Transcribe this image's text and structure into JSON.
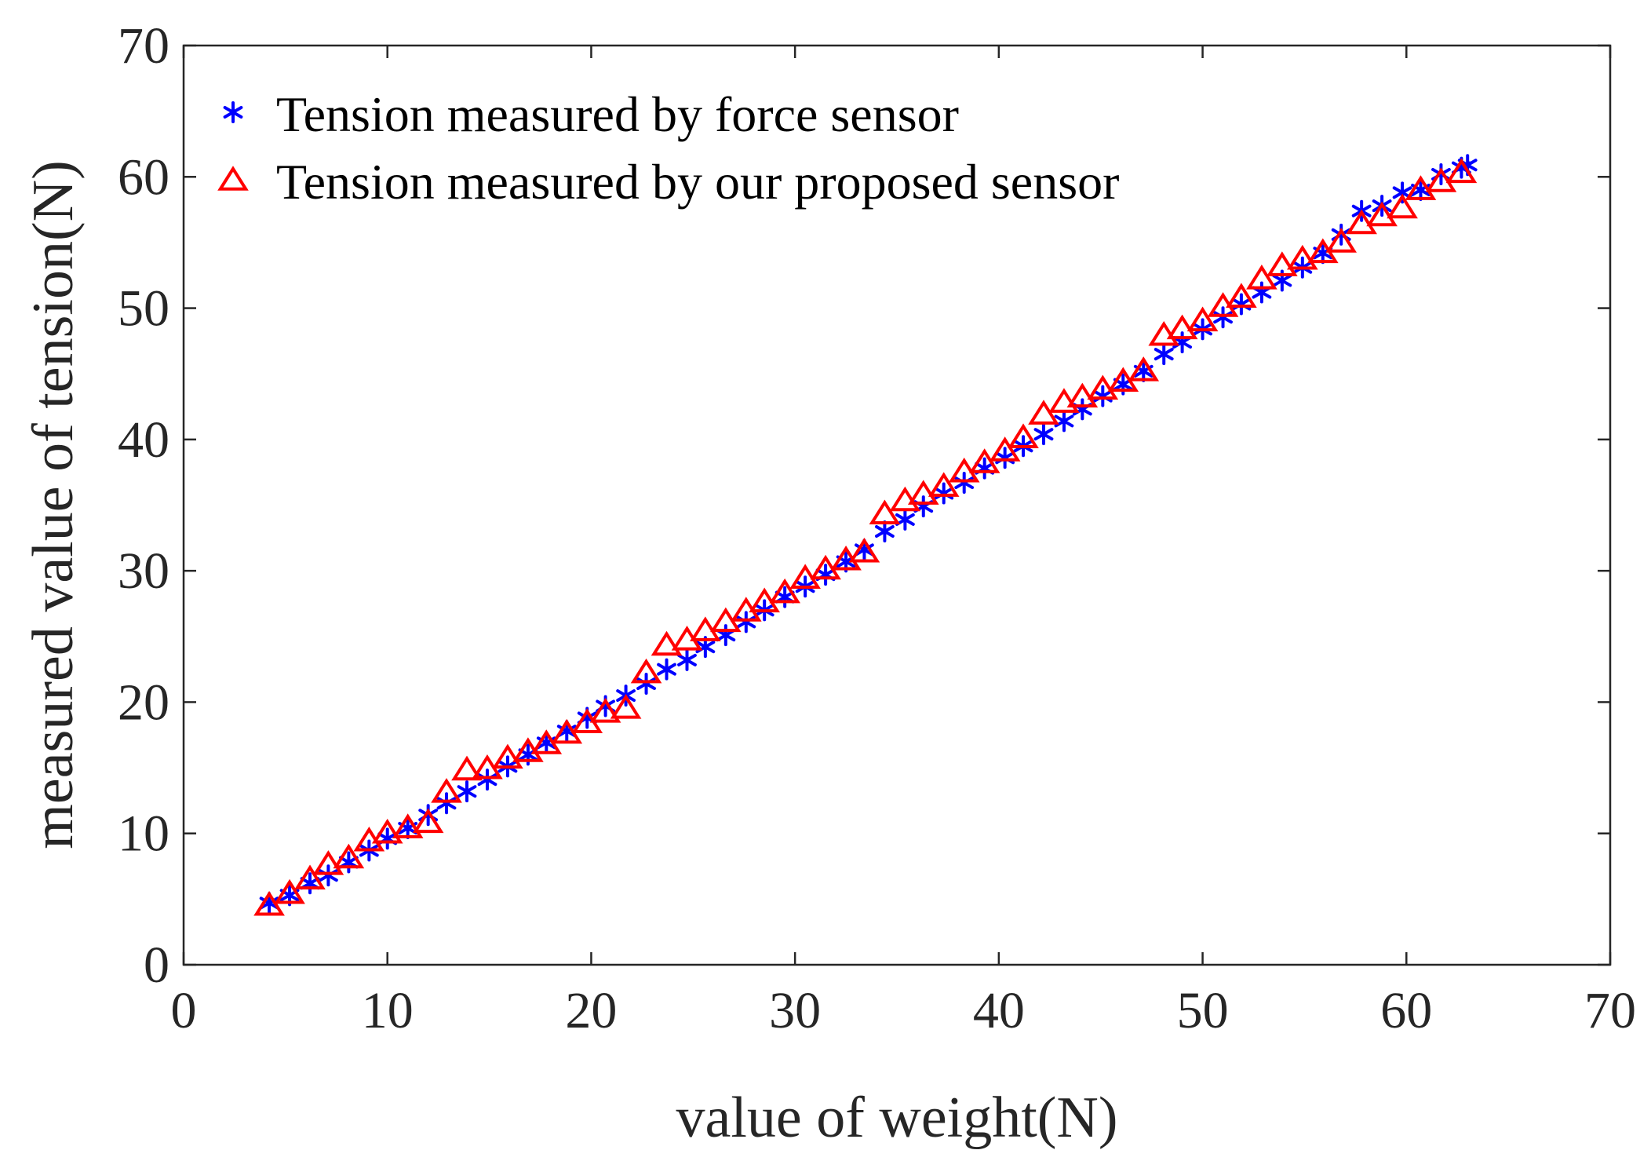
{
  "chart_data": {
    "type": "scatter",
    "title": "",
    "xlabel": "value of weight(N)",
    "ylabel": "measured value of tension(N)",
    "xlim": [
      0,
      70
    ],
    "ylim": [
      0,
      70
    ],
    "xticks": [
      0,
      10,
      20,
      30,
      40,
      50,
      60,
      70
    ],
    "yticks": [
      0,
      10,
      20,
      30,
      40,
      50,
      60,
      70
    ],
    "grid": false,
    "legend_position": "top-left",
    "series": [
      {
        "name": "Tension measured by force sensor",
        "marker": "asterisk",
        "color": "#0000ff",
        "x": [
          4.2,
          5.2,
          6.2,
          7.1,
          8.1,
          9.1,
          10.0,
          11.0,
          12.0,
          12.9,
          13.9,
          14.9,
          15.9,
          16.9,
          17.8,
          18.8,
          19.8,
          20.7,
          21.7,
          22.7,
          23.7,
          24.7,
          25.6,
          26.6,
          27.6,
          28.5,
          29.5,
          30.5,
          31.5,
          32.5,
          33.4,
          34.4,
          35.4,
          36.3,
          37.3,
          38.3,
          39.3,
          40.3,
          41.2,
          42.2,
          43.2,
          44.1,
          45.1,
          46.1,
          47.1,
          48.1,
          49.0,
          50.0,
          51.0,
          51.9,
          52.9,
          53.9,
          54.9,
          55.9,
          56.8,
          57.8,
          58.8,
          59.8,
          60.7,
          61.7,
          62.7,
          63.0
        ],
        "y": [
          4.7,
          5.3,
          6.2,
          6.8,
          7.8,
          8.7,
          9.6,
          10.4,
          11.4,
          12.3,
          13.2,
          14.1,
          15.1,
          16.0,
          16.9,
          17.8,
          18.8,
          19.7,
          20.5,
          21.4,
          22.5,
          23.2,
          24.2,
          25.1,
          26.1,
          27.0,
          28.0,
          28.8,
          29.7,
          30.7,
          31.6,
          33.0,
          33.9,
          34.9,
          35.9,
          36.7,
          37.8,
          38.6,
          39.5,
          40.4,
          41.4,
          42.3,
          43.3,
          44.2,
          45.2,
          46.5,
          47.4,
          48.4,
          49.3,
          50.3,
          51.2,
          52.1,
          53.1,
          54.2,
          55.6,
          57.4,
          57.8,
          58.8,
          59.0,
          60.2,
          60.7,
          60.9
        ]
      },
      {
        "name": "Tension measured by our proposed sensor",
        "marker": "triangle",
        "color": "#ff0000",
        "x": [
          4.2,
          5.2,
          6.2,
          7.1,
          8.1,
          9.1,
          10.0,
          11.0,
          12.0,
          12.9,
          13.9,
          14.9,
          15.9,
          16.9,
          17.8,
          18.8,
          19.8,
          20.7,
          21.7,
          22.7,
          23.7,
          24.7,
          25.6,
          26.6,
          27.6,
          28.5,
          29.5,
          30.5,
          31.5,
          32.5,
          33.4,
          34.4,
          35.4,
          36.3,
          37.3,
          38.3,
          39.3,
          40.3,
          41.2,
          42.2,
          43.2,
          44.1,
          45.1,
          46.1,
          47.1,
          48.1,
          49.0,
          50.0,
          51.0,
          51.9,
          52.9,
          53.9,
          54.9,
          55.9,
          56.8,
          57.8,
          58.8,
          59.8,
          60.7,
          61.7,
          62.7
        ],
        "y": [
          4.5,
          5.4,
          6.5,
          7.6,
          8.1,
          9.4,
          10.0,
          10.4,
          10.8,
          13.1,
          14.8,
          14.9,
          15.7,
          16.2,
          16.8,
          17.6,
          18.4,
          19.2,
          19.5,
          22.2,
          24.3,
          24.7,
          25.4,
          26.1,
          26.9,
          27.6,
          28.3,
          29.4,
          30.1,
          30.8,
          31.4,
          34.3,
          35.3,
          35.8,
          36.4,
          37.5,
          38.2,
          39.1,
          40.1,
          41.9,
          42.8,
          43.2,
          43.8,
          44.4,
          45.2,
          47.9,
          48.4,
          49.0,
          50.1,
          50.8,
          52.2,
          53.2,
          53.7,
          54.2,
          55.0,
          56.4,
          57.0,
          57.6,
          59.0,
          59.6,
          60.3
        ]
      }
    ]
  }
}
